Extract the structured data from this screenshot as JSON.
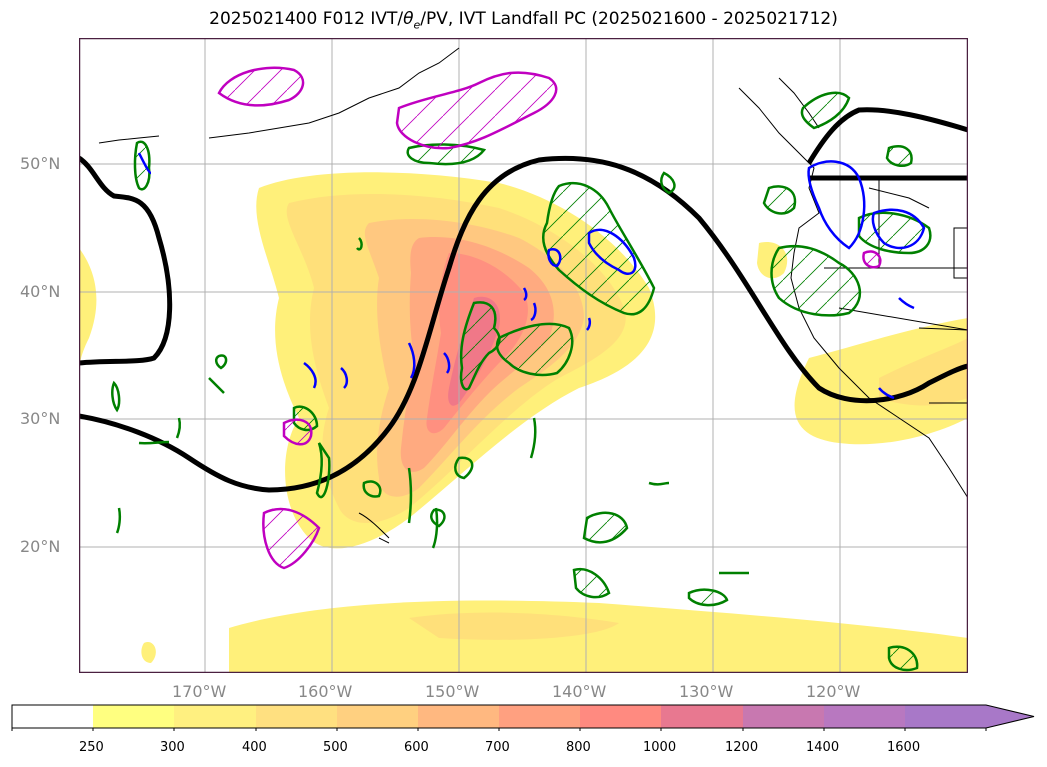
{
  "title_main": "2025021400 F012 IVT/",
  "title_theta": "θ",
  "title_e": "e",
  "title_rest": "/PV, IVT Landfall PC (2025021600 - 2025021712)",
  "lat_labels": [
    "50°N",
    "40°N",
    "30°N",
    "20°N"
  ],
  "lon_labels": [
    "170°W",
    "160°W",
    "150°W",
    "140°W",
    "130°W",
    "120°W"
  ],
  "colorbar": {
    "ticks": [
      "250",
      "300",
      "400",
      "500",
      "600",
      "700",
      "800",
      "1000",
      "1200",
      "1400",
      "1600"
    ],
    "colors": [
      "#ffffff",
      "#ffff80",
      "#fff080",
      "#ffe080",
      "#ffd080",
      "#ffb880",
      "#ffa080",
      "#ff8a80",
      "#e87890",
      "#c878b0",
      "#b878c0",
      "#a878c8"
    ]
  },
  "colors": {
    "theta_contour": "#000000",
    "pv_positive": "#008000",
    "pv_negative": "#0000ff",
    "pv_magenta": "#c000c0",
    "grid": "#b0b0b0",
    "coast": "#000000"
  }
}
